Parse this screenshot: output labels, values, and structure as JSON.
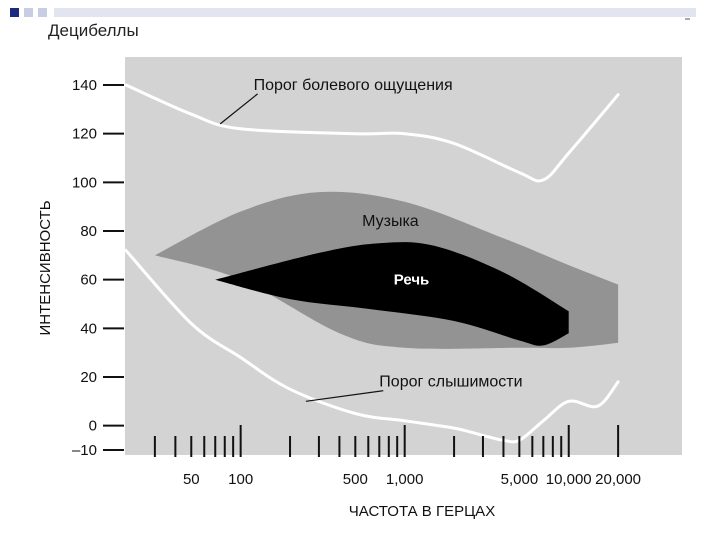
{
  "header": {
    "unit_label": "Децибеллы"
  },
  "colors": {
    "plot_background": "#d3d3d3",
    "music_area": "#939393",
    "speech_area": "#000000",
    "threshold_curves": "#ffffff",
    "slide_square_dark": "#1a2a80",
    "slide_square_light": "#c9cde3"
  },
  "chart_data": {
    "type": "area",
    "title": "",
    "xlabel": "ЧАСТОТА В ГЕРЦАХ",
    "ylabel": "ИНТЕНСИВНОСТЬ",
    "x_scale": "log",
    "xlim": [
      20,
      30000
    ],
    "ylim": [
      -10,
      140
    ],
    "grid": false,
    "legend": "none",
    "y_ticks": [
      {
        "value": 140,
        "label": "140"
      },
      {
        "value": 120,
        "label": "120"
      },
      {
        "value": 100,
        "label": "100"
      },
      {
        "value": 80,
        "label": "80"
      },
      {
        "value": 60,
        "label": "60"
      },
      {
        "value": 40,
        "label": "40"
      },
      {
        "value": 20,
        "label": "20"
      },
      {
        "value": 0,
        "label": "0"
      },
      {
        "value": -10,
        "label": "–10"
      }
    ],
    "x_ticks": [
      30,
      40,
      50,
      60,
      70,
      80,
      90,
      100,
      200,
      300,
      400,
      500,
      600,
      700,
      800,
      900,
      1000,
      2000,
      3000,
      4000,
      5000,
      6000,
      7000,
      8000,
      9000,
      10000,
      20000
    ],
    "x_tick_labels": [
      {
        "value": 50,
        "label": "50"
      },
      {
        "value": 100,
        "label": "100"
      },
      {
        "value": 500,
        "label": "500"
      },
      {
        "value": 1000,
        "label": "1,000"
      },
      {
        "value": 5000,
        "label": "5,000"
      },
      {
        "value": 10000,
        "label": "10,000"
      },
      {
        "value": 20000,
        "label": "20,000"
      }
    ],
    "series": [
      {
        "name": "Порог болевого ощущения",
        "kind": "line",
        "points": [
          [
            20,
            140
          ],
          [
            50,
            128
          ],
          [
            100,
            122
          ],
          [
            500,
            120
          ],
          [
            1000,
            120
          ],
          [
            2000,
            116
          ],
          [
            5000,
            104
          ],
          [
            7000,
            101
          ],
          [
            10000,
            112
          ],
          [
            20000,
            136
          ]
        ],
        "label_at": {
          "x": 120,
          "y": 138
        }
      },
      {
        "name": "Порог слышимости",
        "kind": "line",
        "points": [
          [
            20,
            72
          ],
          [
            50,
            42
          ],
          [
            100,
            28
          ],
          [
            200,
            15
          ],
          [
            500,
            5
          ],
          [
            1000,
            2
          ],
          [
            2000,
            -1
          ],
          [
            3000,
            -4
          ],
          [
            4000,
            -6
          ],
          [
            5000,
            -6
          ],
          [
            7000,
            2
          ],
          [
            10000,
            10
          ],
          [
            15000,
            8
          ],
          [
            20000,
            18
          ]
        ],
        "label_at": {
          "x": 700,
          "y": 16
        }
      },
      {
        "name": "Музыка",
        "kind": "area",
        "upper": [
          [
            30,
            70
          ],
          [
            100,
            88
          ],
          [
            300,
            96
          ],
          [
            1000,
            92
          ],
          [
            4000,
            77
          ],
          [
            10000,
            66
          ],
          [
            20000,
            58
          ]
        ],
        "lower": [
          [
            30,
            70
          ],
          [
            100,
            60
          ],
          [
            400,
            38
          ],
          [
            1000,
            32
          ],
          [
            5000,
            32
          ],
          [
            10000,
            32
          ],
          [
            20000,
            34
          ]
        ],
        "label_at": {
          "x": 550,
          "y": 82
        }
      },
      {
        "name": "Речь",
        "kind": "area",
        "upper": [
          [
            70,
            60
          ],
          [
            300,
            71
          ],
          [
            700,
            75
          ],
          [
            1500,
            74
          ],
          [
            4000,
            63
          ],
          [
            10000,
            47
          ]
        ],
        "lower": [
          [
            70,
            60
          ],
          [
            200,
            52
          ],
          [
            600,
            48
          ],
          [
            2000,
            43
          ],
          [
            5000,
            35
          ],
          [
            7000,
            33
          ],
          [
            10000,
            38
          ]
        ],
        "label_at": {
          "x": 1100,
          "y": 58
        }
      }
    ]
  }
}
